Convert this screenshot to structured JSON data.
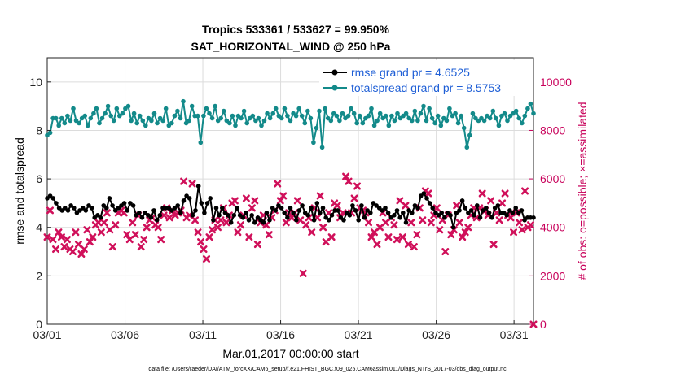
{
  "chart_data": {
    "type": "line",
    "title_line1": "Tropics 533361 / 533627 = 99.950%",
    "title_line2": "SAT_HORIZONTAL_WIND @ 250 hPa",
    "xlabel": "Mar.01,2017 00:00:00 start",
    "ylabel_left": "rmse and totalspread",
    "ylabel_right": "# of obs: o=possible; ×=assimilated",
    "x_tick_labels": [
      "03/01",
      "03/06",
      "03/11",
      "03/16",
      "03/21",
      "03/26",
      "03/31"
    ],
    "y_left_ticks": [
      "0",
      "2",
      "4",
      "6",
      "8",
      "10"
    ],
    "y_right_ticks": [
      "0",
      "2000",
      "4000",
      "6000",
      "8000",
      "10000"
    ],
    "ylim_left": [
      0,
      11
    ],
    "ylim_right": [
      0,
      11000
    ],
    "x_range_days": [
      0,
      31.25
    ],
    "legend": [
      {
        "label": "rmse grand pr = 4.6525",
        "color": "#000000"
      },
      {
        "label": "totalspread grand pr = 8.5753",
        "color": "#138a8a"
      }
    ],
    "colors": {
      "rmse": "#000000",
      "spread": "#138a8a",
      "obs": "#d0105a",
      "legend_text": "#1f5fd6",
      "right_axis": "#c8005a"
    },
    "series_rmse": [
      5.2,
      5.3,
      5.2,
      5.0,
      4.8,
      4.7,
      4.8,
      4.7,
      4.9,
      4.8,
      4.6,
      4.7,
      4.8,
      4.7,
      4.9,
      4.8,
      4.4,
      4.5,
      4.4,
      4.9,
      4.8,
      5.2,
      4.9,
      4.7,
      4.8,
      4.9,
      5.0,
      4.7,
      5.0,
      4.9,
      4.5,
      4.6,
      4.4,
      4.6,
      4.5,
      4.4,
      4.7,
      4.3,
      4.5,
      4.8,
      4.8,
      4.8,
      4.7,
      4.8,
      4.9,
      4.6,
      5.1,
      5.3,
      5.2,
      4.5,
      4.7,
      5.7,
      5.0,
      4.6,
      5.0,
      5.2,
      4.3,
      4.8,
      4.5,
      4.8,
      4.6,
      4.5,
      4.2,
      4.5,
      4.8,
      4.5,
      4.4,
      4.6,
      4.3,
      4.5,
      4.2,
      4.4,
      4.3,
      4.2,
      4.6,
      4.3,
      4.8,
      4.7,
      4.9,
      4.8,
      4.6,
      4.4,
      4.8,
      4.6,
      4.3,
      4.7,
      4.9,
      4.6,
      4.5,
      4.8,
      4.3,
      5.0,
      4.6,
      4.8,
      4.4,
      4.3,
      4.5,
      4.7,
      4.7,
      4.4,
      4.3,
      4.6,
      4.5,
      4.9,
      4.7,
      4.3,
      4.9,
      4.4,
      4.7,
      4.6,
      5.0,
      4.9,
      4.8,
      4.7,
      4.8,
      4.6,
      4.4,
      4.5,
      4.7,
      4.4,
      4.6,
      4.2,
      4.7,
      4.6,
      4.9,
      4.8,
      5.3,
      5.4,
      5.2,
      5.0,
      4.8,
      4.6,
      4.5,
      4.6,
      4.4,
      4.6,
      4.5,
      4.0,
      4.6,
      4.7,
      5.1,
      4.8,
      4.6,
      4.7,
      4.5,
      4.9,
      4.4,
      4.7,
      4.8,
      4.6,
      4.4,
      4.8,
      4.9,
      4.6,
      4.6,
      4.5,
      4.7,
      4.6,
      4.8,
      4.6,
      4.7,
      4.3,
      4.4,
      4.4,
      4.4
    ],
    "series_spread": [
      7.8,
      7.9,
      8.5,
      8.5,
      8.2,
      8.5,
      8.3,
      8.6,
      8.4,
      8.9,
      8.4,
      8.3,
      8.5,
      8.6,
      8.2,
      8.5,
      8.7,
      8.9,
      8.3,
      8.5,
      8.7,
      9.0,
      8.6,
      8.4,
      8.9,
      8.6,
      8.7,
      8.9,
      9.0,
      8.4,
      8.7,
      8.3,
      8.6,
      8.4,
      8.2,
      8.5,
      8.4,
      8.7,
      8.3,
      8.5,
      8.4,
      8.9,
      8.2,
      8.3,
      8.6,
      8.8,
      8.5,
      9.2,
      8.3,
      8.4,
      9.0,
      8.6,
      8.6,
      7.5,
      8.6,
      8.9,
      8.7,
      8.5,
      9.0,
      8.4,
      8.5,
      8.8,
      8.4,
      8.3,
      8.6,
      8.2,
      8.6,
      8.5,
      8.8,
      8.3,
      8.5,
      8.6,
      8.4,
      8.5,
      8.2,
      8.4,
      8.7,
      8.5,
      8.7,
      8.9,
      8.6,
      8.5,
      8.9,
      8.6,
      8.4,
      8.7,
      8.6,
      8.9,
      8.6,
      8.3,
      8.8,
      8.5,
      7.5,
      8.1,
      8.8,
      7.3,
      8.9,
      8.5,
      8.4,
      8.7,
      8.6,
      8.4,
      8.7,
      8.5,
      8.6,
      8.9,
      8.7,
      8.3,
      8.6,
      8.3,
      8.5,
      8.6,
      8.9,
      8.2,
      8.4,
      8.7,
      8.5,
      8.6,
      8.2,
      8.6,
      8.4,
      8.7,
      8.5,
      8.6,
      8.7,
      8.5,
      8.4,
      8.8,
      8.4,
      8.7,
      9.0,
      8.4,
      8.9,
      8.5,
      8.3,
      8.6,
      8.2,
      8.5,
      8.4,
      8.9,
      8.6,
      8.7,
      8.3,
      8.6,
      8.1,
      7.3,
      7.8,
      8.7,
      8.5,
      8.4,
      8.5,
      8.4,
      8.6,
      8.5,
      8.8,
      8.5,
      8.2,
      8.6,
      8.7,
      8.4,
      8.6,
      8.7,
      8.8,
      8.5,
      8.3,
      8.6,
      8.9,
      9.1,
      8.7
    ],
    "series_obs": [
      3600,
      4700,
      3500,
      3100,
      3800,
      3600,
      3200,
      3500,
      3100,
      3000,
      3800,
      3300,
      2900,
      3100,
      3900,
      3400,
      3600,
      4100,
      4200,
      3800,
      4200,
      4600,
      3900,
      3200,
      4100,
      4600,
      4700,
      4600,
      3700,
      3500,
      4200,
      3700,
      4500,
      3200,
      3500,
      4000,
      4300,
      4400,
      4100,
      4000,
      3500,
      4500,
      4800,
      4400,
      4700,
      4500,
      4600,
      4700,
      5900,
      4400,
      4500,
      5800,
      4300,
      3800,
      3400,
      3100,
      2700,
      3600,
      3900,
      4300,
      4000,
      4300,
      4800,
      4200,
      4500,
      5000,
      5100,
      3800,
      4100,
      4500,
      5200,
      3600,
      4800,
      5100,
      3300,
      4200,
      4500,
      4100,
      3700,
      4400,
      4700,
      5800,
      5100,
      5300,
      4200,
      4600,
      4400,
      4600,
      5100,
      4300,
      2100,
      4100,
      4400,
      3800,
      4800,
      4400,
      5300,
      4000,
      3400,
      4600,
      3600,
      5000,
      4900,
      4400,
      4600,
      6100,
      5900,
      4600,
      5200,
      5700,
      4800,
      4700,
      4600,
      4200,
      3600,
      3800,
      3300,
      4000,
      4600,
      4200,
      3600,
      4400,
      4100,
      3500,
      5100,
      3600,
      4900,
      3300,
      4200,
      3200,
      3700,
      4800,
      4300,
      5500,
      5400,
      4200,
      4500,
      4800,
      3900,
      4300,
      3000,
      4500,
      3700,
      3900,
      4900,
      4200,
      3600,
      3800,
      4000,
      4500,
      4800,
      4400,
      4800,
      5400,
      4700,
      4500,
      5100,
      3300,
      4600,
      4300,
      5000,
      5400,
      4500,
      4400,
      3800,
      4600,
      4200,
      3900,
      5500,
      4000,
      4100,
      0
    ],
    "footnote": "data file: /Users/raeder/DAI/ATM_forcXX/CAM6_setup/f.e21.FHIST_BGC.f09_025.CAM6assim.011/Diags_NTrS_2017-03/obs_diag_output.nc"
  }
}
